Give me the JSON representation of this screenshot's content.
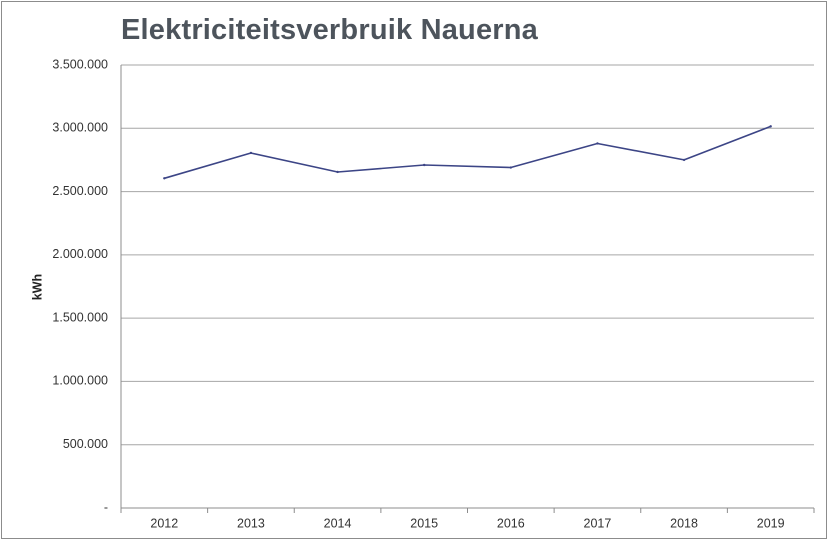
{
  "chart_data": {
    "type": "line",
    "title": "Elektriciteitsverbruik Nauerna",
    "xlabel": "",
    "ylabel": "kWh",
    "categories": [
      "2012",
      "2013",
      "2014",
      "2015",
      "2016",
      "2017",
      "2018",
      "2019"
    ],
    "series": [
      {
        "values": [
          2605000,
          2805000,
          2655000,
          2710000,
          2690000,
          2880000,
          2750000,
          3015000
        ],
        "color": "#3c4586"
      }
    ],
    "ylim": [
      0,
      3500000
    ],
    "yticks": [
      0,
      500000,
      1000000,
      1500000,
      2000000,
      2500000,
      3000000,
      3500000
    ],
    "ytick_labels": [
      "-",
      "500.000",
      "1.000.000",
      "1.500.000",
      "2.000.000",
      "2.500.000",
      "3.000.000",
      "3.500.000"
    ],
    "grid": true,
    "legend": "none"
  }
}
